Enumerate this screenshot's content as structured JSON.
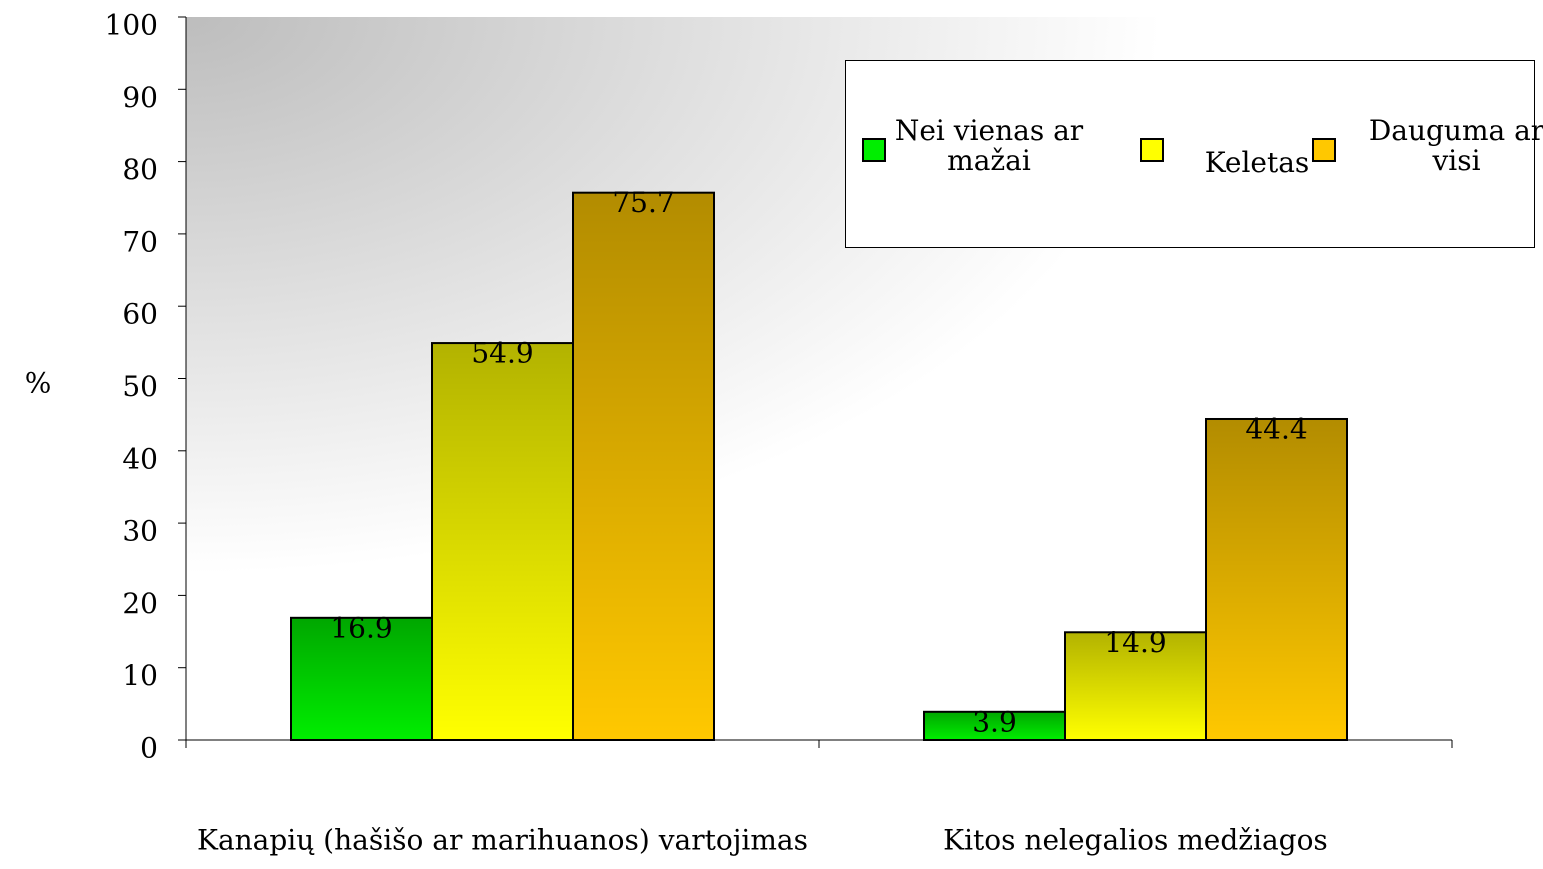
{
  "chart_data": {
    "type": "bar",
    "y_label": "%",
    "categories": [
      "Kanapių (hašišo ar marihuanos) vartojimas",
      "Kitos nelegalios medžiagos"
    ],
    "series": [
      {
        "name": "Nei vienas ar mažai",
        "color": "#00ee00",
        "values": [
          16.9,
          3.9
        ]
      },
      {
        "name": "Keletas",
        "color": "#ffff00",
        "values": [
          54.9,
          14.9
        ]
      },
      {
        "name": "Dauguma ar visi",
        "color": "#ffc800",
        "values": [
          75.7,
          44.4
        ]
      }
    ],
    "ylim": [
      0,
      100
    ],
    "yticks": [
      0,
      10,
      20,
      30,
      40,
      50,
      60,
      70,
      80,
      90,
      100
    ],
    "legend": "upper right"
  }
}
